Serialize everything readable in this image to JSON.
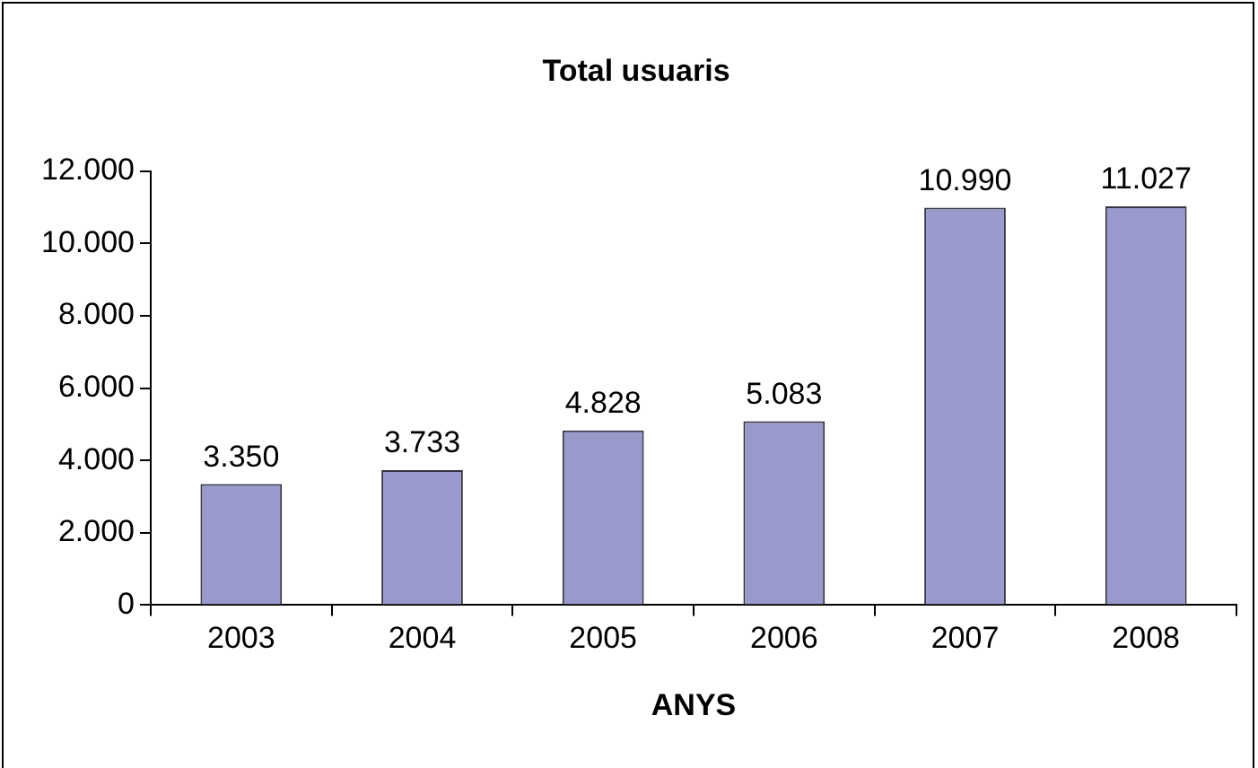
{
  "chart_data": {
    "type": "bar",
    "title": "Total usuaris",
    "xlabel": "ANYS",
    "categories": [
      "2003",
      "2004",
      "2005",
      "2006",
      "2007",
      "2008"
    ],
    "values": [
      3350,
      3733,
      4828,
      5083,
      10990,
      11027
    ],
    "value_labels": [
      "3.350",
      "3.733",
      "4.828",
      "5.083",
      "10.990",
      "11.027"
    ],
    "color": "#9999cc",
    "ylim": [
      0,
      12000
    ],
    "yticks": [
      0,
      {
        "value": 2000,
        "label": "2.000"
      },
      {
        "value": 4000,
        "label": "4.000"
      },
      {
        "value": 6000,
        "label": "6.000"
      },
      {
        "value": 8000,
        "label": "8.000"
      },
      {
        "value": 10000,
        "label": "10.000"
      },
      {
        "value": 12000,
        "label": "12.000"
      }
    ]
  }
}
